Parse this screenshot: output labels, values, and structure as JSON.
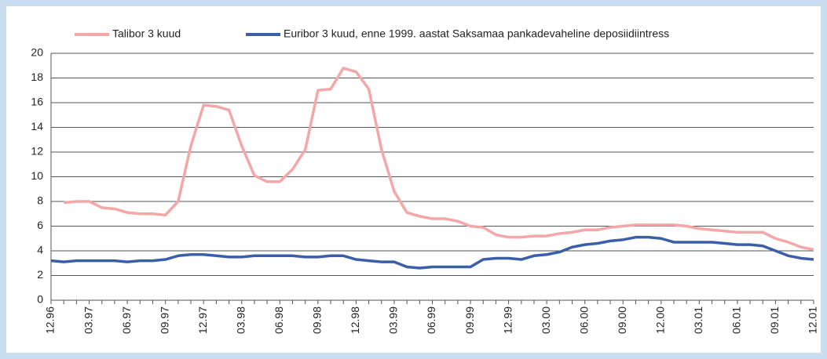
{
  "chart_data": {
    "type": "line",
    "categories": [
      "12.96",
      null,
      null,
      "03.97",
      null,
      null,
      "06.97",
      null,
      null,
      "09.97",
      null,
      null,
      "12.97",
      null,
      null,
      "03.98",
      null,
      null,
      "06.98",
      null,
      null,
      "09.98",
      null,
      null,
      "12.98",
      null,
      null,
      "03.99",
      null,
      null,
      "06.99",
      null,
      null,
      "09.99",
      null,
      null,
      "12.99",
      null,
      null,
      "03.00",
      null,
      null,
      "06.00",
      null,
      null,
      "09.00",
      null,
      null,
      "12.00",
      null,
      null,
      "03.01",
      null,
      null,
      "06.01",
      null,
      null,
      "09.01",
      null,
      null,
      "12.01"
    ],
    "series": [
      {
        "name": "Talibor 3 kuud",
        "color": "#f4a7a7",
        "values": [
          null,
          7.9,
          8.0,
          8.0,
          7.5,
          7.4,
          7.1,
          7.0,
          7.0,
          6.9,
          8.0,
          12.5,
          15.8,
          15.7,
          15.4,
          12.5,
          10.1,
          9.6,
          9.6,
          10.6,
          12.2,
          17.0,
          17.1,
          18.8,
          18.5,
          17.1,
          12.2,
          8.8,
          7.1,
          6.8,
          6.6,
          6.6,
          6.4,
          6.0,
          5.9,
          5.3,
          5.1,
          5.1,
          5.2,
          5.2,
          5.4,
          5.5,
          5.7,
          5.7,
          5.9,
          6.0,
          6.1,
          6.1,
          6.1,
          6.1,
          6.0,
          5.8,
          5.7,
          5.6,
          5.5,
          5.5,
          5.5,
          5.0,
          4.7,
          4.3,
          4.1
        ]
      },
      {
        "name": "Euribor 3 kuud, enne 1999. aastat Saksamaa pankadevaheline deposiidiintress",
        "color": "#3a5fa8",
        "values": [
          3.2,
          3.1,
          3.2,
          3.2,
          3.2,
          3.2,
          3.1,
          3.2,
          3.2,
          3.3,
          3.6,
          3.7,
          3.7,
          3.6,
          3.5,
          3.5,
          3.6,
          3.6,
          3.6,
          3.6,
          3.5,
          3.5,
          3.6,
          3.6,
          3.3,
          3.2,
          3.1,
          3.1,
          2.7,
          2.6,
          2.7,
          2.7,
          2.7,
          2.7,
          3.3,
          3.4,
          3.4,
          3.3,
          3.6,
          3.7,
          3.9,
          4.3,
          4.5,
          4.6,
          4.8,
          4.9,
          5.1,
          5.1,
          5.0,
          4.7,
          4.7,
          4.7,
          4.7,
          4.6,
          4.5,
          4.5,
          4.4,
          4.0,
          3.6,
          3.4,
          3.3
        ]
      }
    ],
    "ylim": [
      0,
      20
    ],
    "yticks": [
      0,
      2,
      4,
      6,
      8,
      10,
      12,
      14,
      16,
      18,
      20
    ],
    "grid": true
  }
}
